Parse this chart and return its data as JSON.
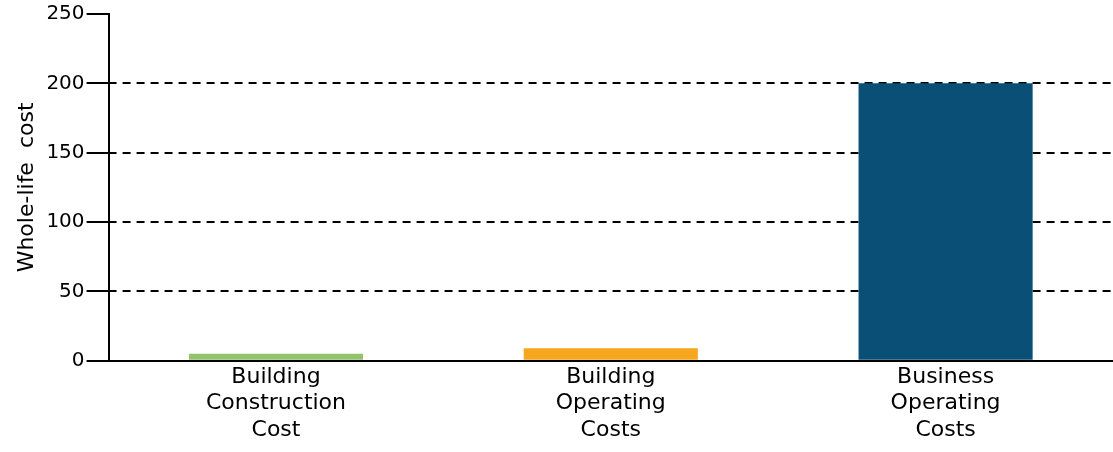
{
  "chart_data": {
    "type": "bar",
    "ylabel": "Whole-life  cost",
    "categories": [
      "Building Construction Cost",
      "Building Operating Costs",
      "Business Operating Costs"
    ],
    "values": [
      5,
      9,
      200
    ],
    "colors": [
      "#92c36e",
      "#f6a71e",
      "#0a5076"
    ],
    "ylim": [
      0,
      250
    ],
    "yticks": [
      0,
      50,
      100,
      150,
      200,
      250
    ],
    "grid": "y",
    "line_style": "dashed",
    "legend": false
  }
}
